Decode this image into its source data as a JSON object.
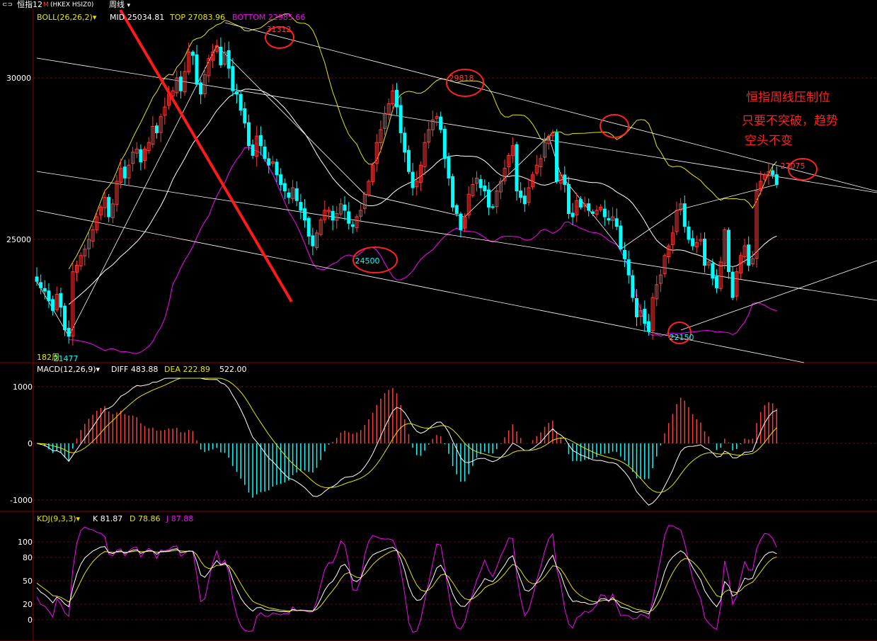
{
  "toolbar": {
    "back_glyph": "⊂⊃",
    "symbol": "恒指12",
    "symbol_suffix": "M",
    "code": "(HKEX HSIZ0)",
    "period": "周线"
  },
  "annotation": {
    "line1": "恒指周线压制位",
    "line2": "只要不突破，趋势",
    "line3": "空头不变"
  },
  "colors": {
    "up": "#ff3b3b",
    "down": "#00ffff",
    "mid": "#ffffff",
    "upper_band": "#e6e600",
    "lower_band": "#ff00ff",
    "grid": "#7a0000",
    "axis": "#8a0000"
  },
  "chart_data": [
    {
      "type": "candlestick",
      "indicator": "BOLL(26,26,2)",
      "legend": {
        "mid_label": "MID",
        "mid": "25034.81",
        "top_label": "TOP",
        "top": "27083.96",
        "bottom_label": "BOTTOM",
        "bottom": "22985.66"
      },
      "y_ticks": [
        30000,
        25000
      ],
      "ylim": [
        20600,
        32000
      ],
      "labels": {
        "high_31312": "31312",
        "high_29818": "29818",
        "low_24500": "24500",
        "low_22150": "22150",
        "high_27075": "27075",
        "low_21477": "21477",
        "period_count": "182周"
      },
      "close": [
        23700,
        23500,
        23400,
        23100,
        22800,
        23300,
        22900,
        22200,
        22000,
        24000,
        24200,
        24500,
        24700,
        25000,
        25300,
        25700,
        26000,
        26300,
        25700,
        26100,
        26800,
        27200,
        26900,
        27300,
        27700,
        27800,
        27400,
        27800,
        28000,
        28500,
        28300,
        28800,
        29100,
        29500,
        29600,
        30000,
        29600,
        30200,
        30800,
        30700,
        29800,
        29500,
        30100,
        30600,
        30800,
        31000,
        30400,
        30800,
        30300,
        29600,
        29500,
        29000,
        28600,
        27900,
        27600,
        28200,
        27900,
        27500,
        27300,
        27400,
        27000,
        26700,
        26500,
        26300,
        26600,
        26200,
        25900,
        25600,
        25100,
        24800,
        25200,
        25600,
        25900,
        25900,
        25600,
        25800,
        26100,
        25900,
        25500,
        25400,
        25700,
        25900,
        26400,
        26800,
        27300,
        28000,
        28400,
        28900,
        29200,
        29600,
        29100,
        28300,
        27700,
        27100,
        26600,
        26800,
        27300,
        28000,
        28400,
        28700,
        28800,
        28400,
        27500,
        26900,
        26000,
        25800,
        25300,
        25700,
        26400,
        26700,
        26900,
        26600,
        26500,
        26000,
        26000,
        26500,
        26800,
        27200,
        27600,
        27900,
        26500,
        26300,
        26100,
        26600,
        27000,
        27300,
        27500,
        28000,
        28200,
        28300,
        26800,
        27000,
        26700,
        25800,
        25700,
        26200,
        26000,
        26100,
        25900,
        25800,
        25900,
        26000,
        25700,
        25600,
        25700,
        25400,
        24700,
        24400,
        23900,
        23200,
        22600,
        22800,
        22400,
        22150,
        23200,
        23600,
        23900,
        24500,
        24800,
        25200,
        25900,
        26100,
        25400,
        25000,
        24800,
        24900,
        25000,
        24200,
        24300,
        23800,
        23500,
        24300,
        25300,
        24000,
        23200,
        24000,
        24500,
        24800,
        24200,
        24400,
        26500,
        26800,
        27000,
        27100,
        27000,
        26700
      ]
    },
    {
      "type": "line",
      "indicator": "MACD(12,26,9)",
      "legend": {
        "diff_label": "DIFF",
        "diff": "483.88",
        "dea_label": "DEA",
        "dea": "222.89",
        "macd": "522.00"
      },
      "y_ticks": [
        1000,
        0,
        -1000
      ],
      "ylim": [
        -1150,
        1150
      ]
    },
    {
      "type": "line",
      "indicator": "KDJ(9,3,3)",
      "legend": {
        "k_label": "K",
        "k": "81.87",
        "d_label": "D",
        "d": "78.86",
        "j_label": "J",
        "j": "87.88"
      },
      "y_ticks": [
        100,
        80,
        50,
        20,
        0
      ],
      "ylim": [
        -30,
        135
      ]
    }
  ]
}
